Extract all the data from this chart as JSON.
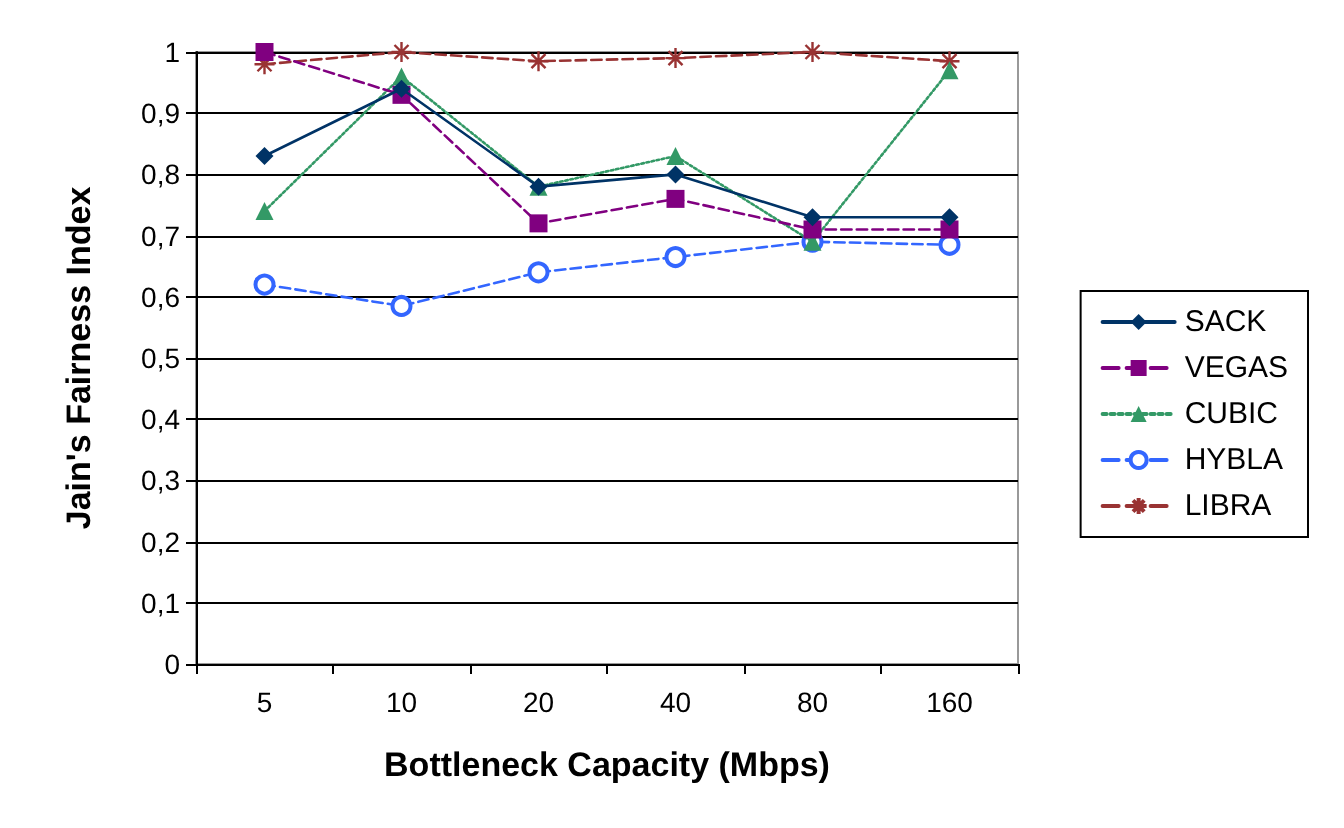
{
  "chart_data": {
    "type": "line",
    "xlabel": "Bottleneck Capacity (Mbps)",
    "ylabel": "Jain's Fairness Index",
    "categories": [
      "5",
      "10",
      "20",
      "40",
      "80",
      "160"
    ],
    "ylim": [
      0,
      1
    ],
    "yticks": [
      0,
      {
        "value": 0.1,
        "label": "0,1"
      },
      {
        "value": 0.2,
        "label": "0,2"
      },
      {
        "value": 0.3,
        "label": "0,3"
      },
      {
        "value": 0.4,
        "label": "0,4"
      },
      {
        "value": 0.5,
        "label": "0,5"
      },
      {
        "value": 0.6,
        "label": "0,6"
      },
      {
        "value": 0.7,
        "label": "0,7"
      },
      {
        "value": 0.8,
        "label": "0,8"
      },
      {
        "value": 0.9,
        "label": "0,9"
      },
      1
    ],
    "grid": "y",
    "legend": "right",
    "series": [
      {
        "name": "SACK",
        "color": "#003366",
        "marker": "diamond",
        "line_style": "solid",
        "values": [
          0.83,
          0.94,
          0.78,
          0.8,
          0.73,
          0.73
        ]
      },
      {
        "name": "VEGAS",
        "color": "#800080",
        "marker": "square",
        "line_style": "dashed",
        "values": [
          1.0,
          0.93,
          0.72,
          0.76,
          0.71,
          0.71
        ]
      },
      {
        "name": "CUBIC",
        "color": "#339966",
        "marker": "triangle",
        "line_style": "dotted",
        "values": [
          0.74,
          0.96,
          0.78,
          0.83,
          0.69,
          0.97
        ]
      },
      {
        "name": "HYBLA",
        "color": "#3366ff",
        "marker": "circle",
        "line_style": "dashed",
        "values": [
          0.62,
          0.585,
          0.64,
          0.665,
          0.69,
          0.685
        ]
      },
      {
        "name": "LIBRA",
        "color": "#993333",
        "marker": "cross",
        "line_style": "dashed",
        "values": [
          0.98,
          1.0,
          0.985,
          0.99,
          1.0,
          0.985
        ]
      }
    ]
  }
}
